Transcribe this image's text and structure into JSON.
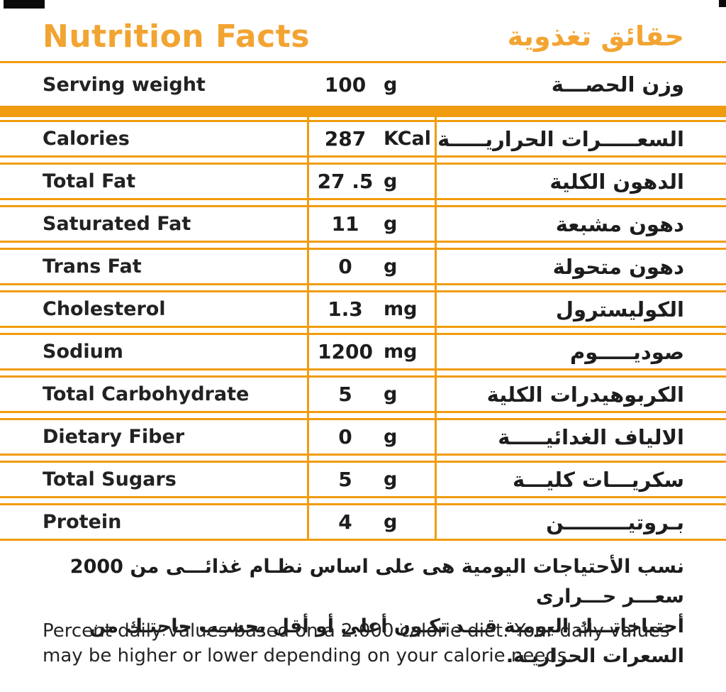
{
  "colors": {
    "accent_orange": "#F09C0E",
    "title_orange": "#F2A432",
    "text_black": "#222222"
  },
  "header": {
    "title_en": "Nutrition Facts",
    "title_ar": "حقائق تغذوية"
  },
  "serving_row": {
    "label_en": "Serving weight",
    "value": "100",
    "unit": "g",
    "label_ar": "وزن الحصـــة"
  },
  "table": {
    "rows": [
      {
        "label_en": "Calories",
        "value": "287",
        "unit": "KCal",
        "label_ar": "السعـــــرات الحراريـــــة"
      },
      {
        "label_en": "Total Fat",
        "value": "27 .5",
        "unit": "g",
        "label_ar": "الدهون الكلية"
      },
      {
        "label_en": "Saturated Fat",
        "value": "11",
        "unit": "g",
        "label_ar": "دهون مشبعة"
      },
      {
        "label_en": "Trans Fat",
        "value": "0",
        "unit": "g",
        "label_ar": "دهون متحولة"
      },
      {
        "label_en": "Cholesterol",
        "value": "1.3",
        "unit": "mg",
        "label_ar": "الكوليسترول"
      },
      {
        "label_en": "Sodium",
        "value": "1200",
        "unit": "mg",
        "label_ar": "صوديـــــوم"
      },
      {
        "label_en": "Total Carbohydrate",
        "value": "5",
        "unit": "g",
        "label_ar": "الكربوهيدرات الكلية"
      },
      {
        "label_en": "Dietary Fiber",
        "value": "0",
        "unit": "g",
        "label_ar": "الالياف الغدائيـــــة"
      },
      {
        "label_en": "Total Sugars",
        "value": "5",
        "unit": "g",
        "label_ar": "سكريـــات كليـــة"
      },
      {
        "label_en": "Protein",
        "value": "4",
        "unit": "g",
        "label_ar": "بـروتيـــــــــن"
      }
    ]
  },
  "footer": {
    "ar_line1": "نسب الأحتياجات اليومية هى على اساس نظـام غذائـــى من 2000 سعـــر حـــرارى",
    "ar_line2": "أحتياجاتـــك اليومية قـــد تكـون أعلى أو أقل بحسـب حاجتـك من السعرات الحراريـة.",
    "en_line1": "Percent daily values based on a 2.000 calorie diet. Your daily values",
    "en_line2": "may be higher or lower depending on your calorie needs."
  }
}
